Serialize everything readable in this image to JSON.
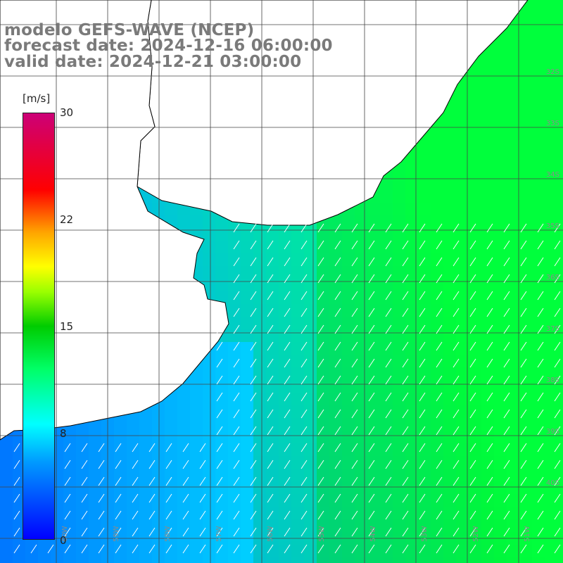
{
  "header": {
    "model": "modelo GEFS-WAVE (NCEP)",
    "forecast": "forecast date: 2024-12-16 06:00:00",
    "valid": "valid date: 2024-12-21 03:00:00"
  },
  "colorbar": {
    "unit": "[m/s]",
    "ticks": [
      "30",
      "22",
      "15",
      "8",
      "0"
    ],
    "range": [
      0,
      30
    ],
    "colors": [
      "#0000ff",
      "#0099ff",
      "#00ffff",
      "#00ff66",
      "#00cc00",
      "#99ff00",
      "#ffff00",
      "#ffa500",
      "#ff0000",
      "#cc0077"
    ]
  },
  "map": {
    "land_color": "#ffffff",
    "grid_color": "#444444",
    "coast_color": "#000000",
    "arrow_color": "#ffffff",
    "lat_labels": [
      "32S",
      "33S",
      "34S",
      "35S",
      "36S",
      "37S",
      "38S",
      "39S",
      "40S"
    ],
    "lon_labels": [
      "60W",
      "59W",
      "58W",
      "57W",
      "56W",
      "55W",
      "54W",
      "53W",
      "52W",
      "51W"
    ]
  }
}
